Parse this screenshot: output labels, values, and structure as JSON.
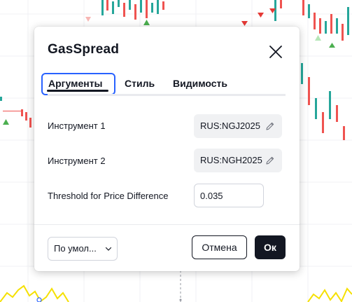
{
  "dialog": {
    "title": "GasSpread"
  },
  "tabs": [
    {
      "label": "Аргументы",
      "active": true
    },
    {
      "label": "Стиль",
      "active": false
    },
    {
      "label": "Видимость",
      "active": false
    }
  ],
  "inputs": {
    "instrument1": {
      "label": "Инструмент 1",
      "value": "RUS:NGJ2025"
    },
    "instrument2": {
      "label": "Инструмент 2",
      "value": "RUS:NGH2025"
    },
    "threshold": {
      "label": "Threshold for Price Difference",
      "value": "0.035"
    }
  },
  "footer": {
    "defaults_label": "По умол...",
    "cancel_label": "Отмена",
    "ok_label": "Ок"
  },
  "colors": {
    "accent": "#2962ff",
    "text": "#131722",
    "candle_up": "#26a69a",
    "candle_down": "#ef5350",
    "indicator_line": "#f5e000",
    "ok_button_bg": "#131722"
  },
  "icons": {
    "close": "close-icon",
    "edit": "pencil-icon",
    "dropdown": "chevron-down-icon"
  }
}
